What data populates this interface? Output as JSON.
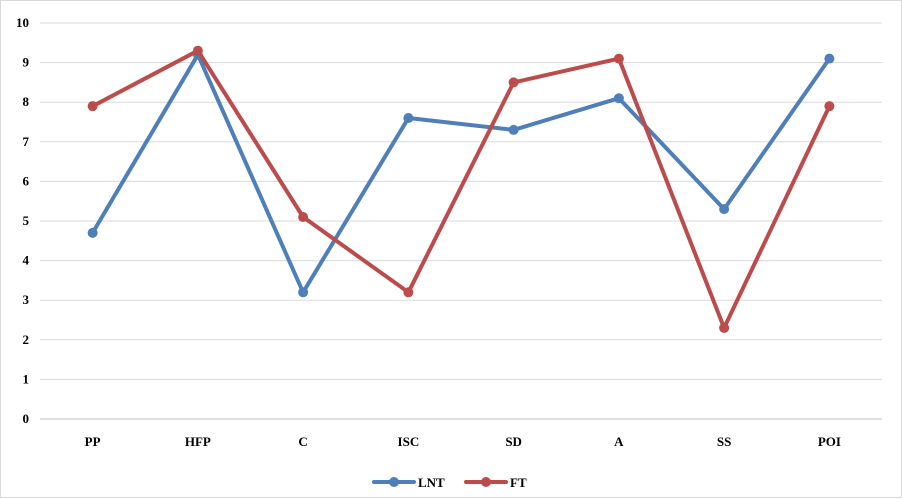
{
  "chart_data": {
    "type": "line",
    "categories": [
      "PP",
      "HFP",
      "C",
      "ISC",
      "SD",
      "A",
      "SS",
      "POI"
    ],
    "series": [
      {
        "name": "LNT",
        "color": "#4F7FB9",
        "values": [
          4.7,
          9.2,
          3.2,
          7.6,
          7.3,
          8.1,
          5.3,
          9.1
        ]
      },
      {
        "name": "FT",
        "color": "#BC4B4B",
        "values": [
          7.9,
          9.3,
          5.1,
          3.2,
          8.5,
          9.1,
          2.3,
          7.9
        ]
      }
    ],
    "ylim": [
      0,
      10
    ],
    "yticks": [
      "0",
      "1",
      "2",
      "3",
      "4",
      "5",
      "6",
      "7",
      "8",
      "9",
      "10"
    ],
    "grid": true,
    "legend_position": "bottom",
    "title": "",
    "xlabel": "",
    "ylabel": ""
  }
}
